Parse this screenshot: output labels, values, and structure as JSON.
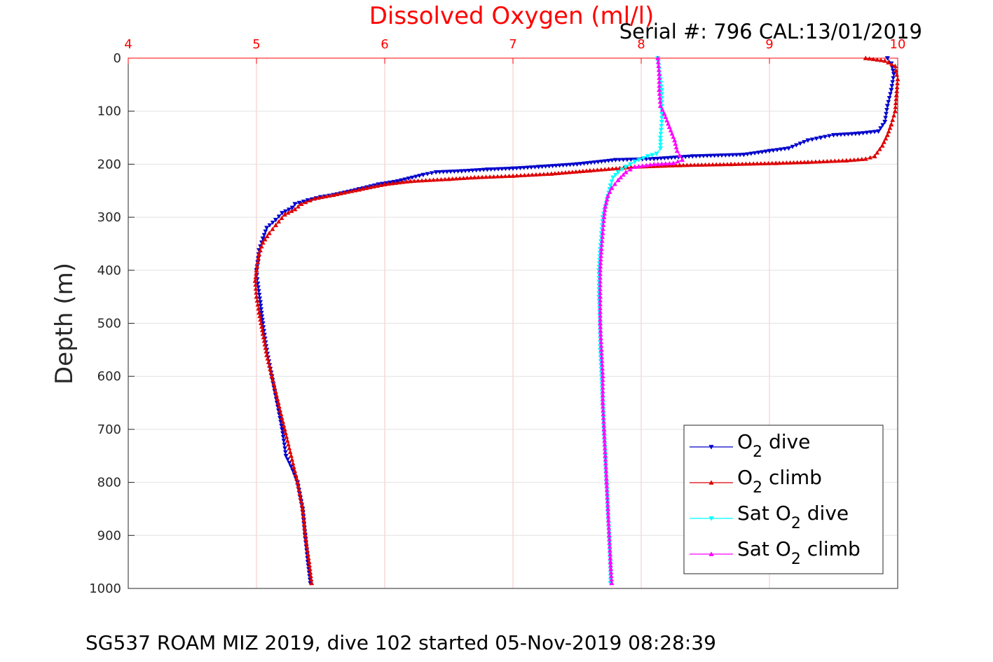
{
  "chart_data": {
    "type": "line",
    "title": "Dissolved Oxygen (ml/l)",
    "subtitle": "Serial #: 796  CAL:13/01/2019",
    "ylabel": "Depth (m)",
    "caption": "SG537 ROAM MIZ 2019, dive 102 started 05-Nov-2019 08:28:39",
    "xlim": [
      4,
      10
    ],
    "ylim": [
      0,
      1000
    ],
    "y_reversed": true,
    "x_axis_position": "top",
    "x_ticks": [
      4,
      5,
      6,
      7,
      8,
      9,
      10
    ],
    "y_ticks": [
      0,
      100,
      200,
      300,
      400,
      500,
      600,
      700,
      800,
      900,
      1000
    ],
    "grid": true,
    "legend_position": "bottom-right",
    "series": [
      {
        "name": "O2 dive",
        "legend_main": "O",
        "legend_sub": "2",
        "legend_rest": " dive",
        "color": "#0000cc",
        "marker": "triangle-down",
        "points": [
          [
            9.92,
            0
          ],
          [
            9.95,
            10
          ],
          [
            9.97,
            30
          ],
          [
            9.95,
            60
          ],
          [
            9.92,
            90
          ],
          [
            9.9,
            120
          ],
          [
            9.85,
            138
          ],
          [
            9.7,
            142
          ],
          [
            9.5,
            145
          ],
          [
            9.4,
            150
          ],
          [
            9.3,
            155
          ],
          [
            9.15,
            170
          ],
          [
            9.0,
            175
          ],
          [
            8.8,
            182
          ],
          [
            8.4,
            185
          ],
          [
            8.1,
            190
          ],
          [
            7.8,
            192
          ],
          [
            7.5,
            200
          ],
          [
            7.2,
            205
          ],
          [
            7.0,
            208
          ],
          [
            6.8,
            210
          ],
          [
            6.6,
            213
          ],
          [
            6.4,
            215
          ],
          [
            6.3,
            220
          ],
          [
            6.1,
            232
          ],
          [
            5.95,
            238
          ],
          [
            5.8,
            247
          ],
          [
            5.6,
            258
          ],
          [
            5.5,
            262
          ],
          [
            5.4,
            268
          ],
          [
            5.3,
            275
          ],
          [
            5.28,
            282
          ],
          [
            5.2,
            292
          ],
          [
            5.15,
            305
          ],
          [
            5.08,
            320
          ],
          [
            5.05,
            340
          ],
          [
            5.02,
            362
          ],
          [
            5.01,
            385
          ],
          [
            5.0,
            400
          ],
          [
            5.01,
            425
          ],
          [
            5.03,
            460
          ],
          [
            5.05,
            500
          ],
          [
            5.08,
            550
          ],
          [
            5.12,
            600
          ],
          [
            5.16,
            650
          ],
          [
            5.2,
            700
          ],
          [
            5.23,
            750
          ],
          [
            5.27,
            770
          ],
          [
            5.32,
            800
          ],
          [
            5.36,
            850
          ],
          [
            5.38,
            900
          ],
          [
            5.4,
            950
          ],
          [
            5.42,
            990
          ]
        ]
      },
      {
        "name": "O2 climb",
        "legend_main": "O",
        "legend_sub": "2",
        "legend_rest": " climb",
        "color": "#dd0000",
        "marker": "triangle-up",
        "points": [
          [
            9.75,
            0
          ],
          [
            9.9,
            5
          ],
          [
            9.98,
            15
          ],
          [
            10.0,
            40
          ],
          [
            9.99,
            70
          ],
          [
            9.98,
            100
          ],
          [
            9.95,
            125
          ],
          [
            9.92,
            145
          ],
          [
            9.88,
            165
          ],
          [
            9.82,
            185
          ],
          [
            9.75,
            190
          ],
          [
            9.6,
            193
          ],
          [
            9.3,
            196
          ],
          [
            9.05,
            198
          ],
          [
            8.7,
            200
          ],
          [
            8.3,
            202
          ],
          [
            7.95,
            205
          ],
          [
            7.6,
            212
          ],
          [
            7.3,
            218
          ],
          [
            7.0,
            222
          ],
          [
            6.7,
            225
          ],
          [
            6.5,
            228
          ],
          [
            6.2,
            232
          ],
          [
            6.0,
            238
          ],
          [
            5.8,
            248
          ],
          [
            5.6,
            258
          ],
          [
            5.45,
            265
          ],
          [
            5.35,
            275
          ],
          [
            5.3,
            285
          ],
          [
            5.22,
            295
          ],
          [
            5.15,
            315
          ],
          [
            5.1,
            330
          ],
          [
            5.05,
            348
          ],
          [
            5.02,
            370
          ],
          [
            5.0,
            400
          ],
          [
            4.99,
            420
          ],
          [
            5.0,
            450
          ],
          [
            5.02,
            480
          ],
          [
            5.05,
            520
          ],
          [
            5.08,
            560
          ],
          [
            5.12,
            600
          ],
          [
            5.17,
            650
          ],
          [
            5.22,
            700
          ],
          [
            5.27,
            750
          ],
          [
            5.32,
            800
          ],
          [
            5.36,
            850
          ],
          [
            5.38,
            900
          ],
          [
            5.41,
            950
          ],
          [
            5.43,
            990
          ]
        ]
      },
      {
        "name": "Sat O2 dive",
        "legend_main": "Sat O",
        "legend_sub": "2",
        "legend_rest": " dive",
        "color": "#00ffff",
        "marker": "triangle-down",
        "points": [
          [
            8.13,
            0
          ],
          [
            8.14,
            20
          ],
          [
            8.15,
            40
          ],
          [
            8.16,
            60
          ],
          [
            8.16,
            90
          ],
          [
            8.16,
            120
          ],
          [
            8.15,
            150
          ],
          [
            8.15,
            170
          ],
          [
            8.12,
            180
          ],
          [
            8.05,
            185
          ],
          [
            7.95,
            195
          ],
          [
            7.88,
            205
          ],
          [
            7.82,
            215
          ],
          [
            7.78,
            225
          ],
          [
            7.76,
            240
          ],
          [
            7.74,
            260
          ],
          [
            7.72,
            280
          ],
          [
            7.7,
            300
          ],
          [
            7.69,
            330
          ],
          [
            7.68,
            360
          ],
          [
            7.67,
            400
          ],
          [
            7.67,
            450
          ],
          [
            7.68,
            500
          ],
          [
            7.68,
            550
          ],
          [
            7.69,
            600
          ],
          [
            7.7,
            650
          ],
          [
            7.71,
            700
          ],
          [
            7.72,
            750
          ],
          [
            7.73,
            800
          ],
          [
            7.74,
            850
          ],
          [
            7.75,
            900
          ],
          [
            7.76,
            950
          ],
          [
            7.76,
            990
          ]
        ]
      },
      {
        "name": "Sat O2 climb",
        "legend_main": "Sat O",
        "legend_sub": "2",
        "legend_rest": " climb",
        "color": "#ff00ff",
        "marker": "triangle-up",
        "points": [
          [
            8.13,
            0
          ],
          [
            8.14,
            30
          ],
          [
            8.14,
            60
          ],
          [
            8.15,
            90
          ],
          [
            8.18,
            105
          ],
          [
            8.22,
            130
          ],
          [
            8.26,
            155
          ],
          [
            8.28,
            175
          ],
          [
            8.32,
            192
          ],
          [
            8.25,
            198
          ],
          [
            8.1,
            200
          ],
          [
            7.95,
            205
          ],
          [
            7.88,
            215
          ],
          [
            7.82,
            230
          ],
          [
            7.77,
            245
          ],
          [
            7.74,
            260
          ],
          [
            7.72,
            280
          ],
          [
            7.71,
            300
          ],
          [
            7.7,
            330
          ],
          [
            7.69,
            360
          ],
          [
            7.68,
            400
          ],
          [
            7.68,
            450
          ],
          [
            7.68,
            500
          ],
          [
            7.69,
            550
          ],
          [
            7.7,
            600
          ],
          [
            7.7,
            650
          ],
          [
            7.71,
            700
          ],
          [
            7.72,
            750
          ],
          [
            7.73,
            800
          ],
          [
            7.74,
            850
          ],
          [
            7.75,
            900
          ],
          [
            7.76,
            950
          ],
          [
            7.77,
            990
          ]
        ]
      }
    ]
  }
}
